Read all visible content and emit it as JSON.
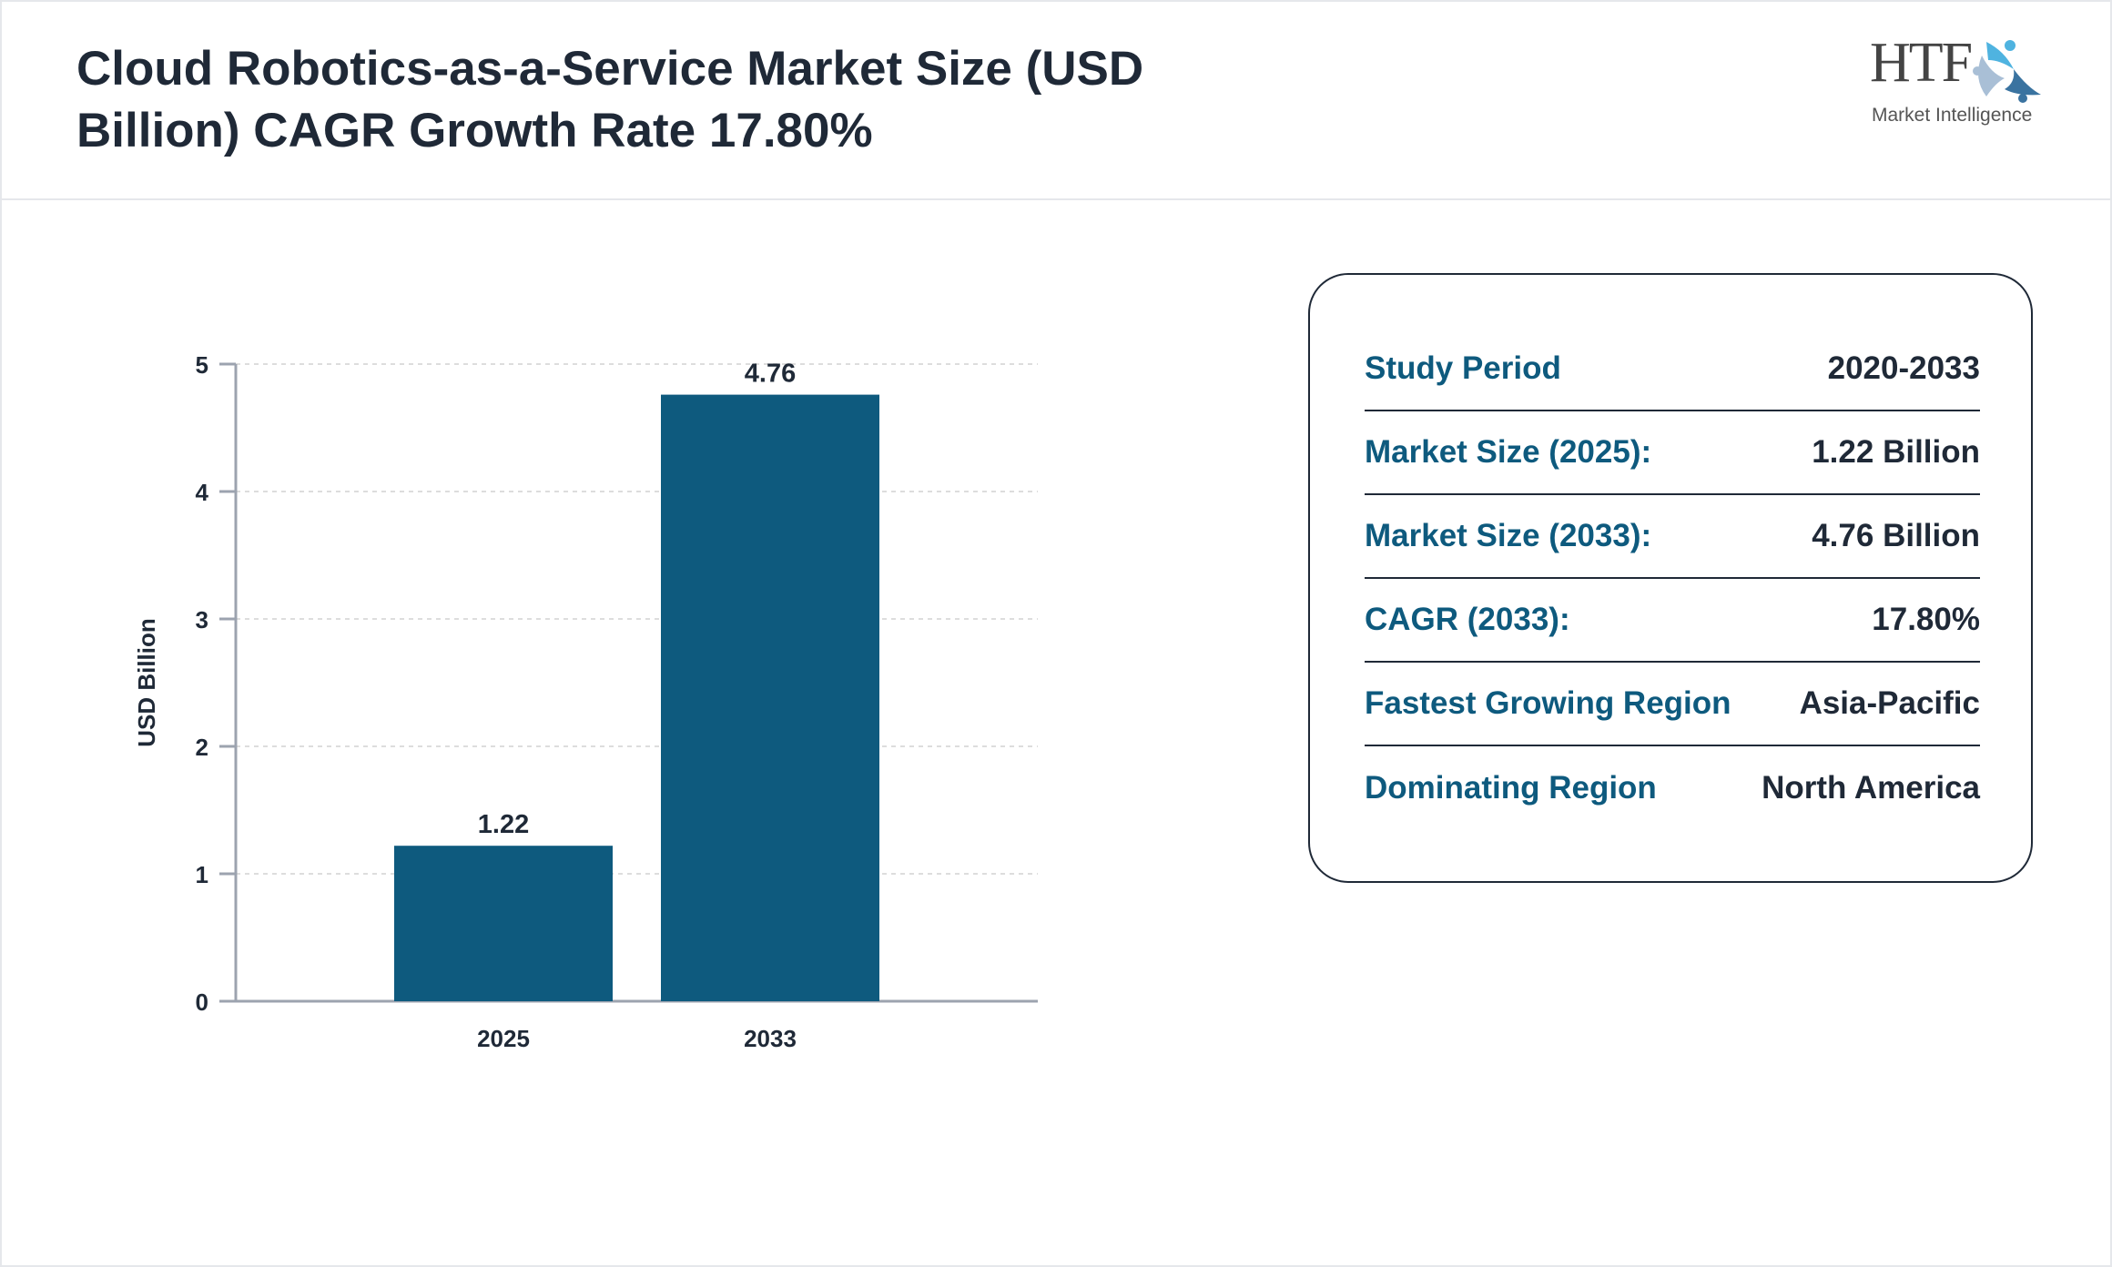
{
  "header": {
    "title": "Cloud Robotics-as-a-Service Market Size (USD Billion) CAGR Growth Rate 17.80%"
  },
  "logo": {
    "text_main": "HTF",
    "text_sub": "Market Intelligence"
  },
  "chart_data": {
    "type": "bar",
    "categories": [
      "2025",
      "2033"
    ],
    "values": [
      1.22,
      4.76
    ],
    "data_labels": [
      "1.22",
      "4.76"
    ],
    "ylabel": "USD Billion",
    "xlabel": "",
    "ylim": [
      0,
      5
    ],
    "yticks": [
      "0",
      "1",
      "2",
      "3",
      "4",
      "5"
    ],
    "grid": true,
    "bar_color": "#0e5a7e"
  },
  "info": {
    "rows": [
      {
        "label": "Study Period",
        "value": "2020-2033"
      },
      {
        "label": "Market Size (2025):",
        "value": "1.22 Billion"
      },
      {
        "label": "Market Size (2033):",
        "value": "4.76 Billion"
      },
      {
        "label": "CAGR (2033):",
        "value": "17.80%"
      },
      {
        "label": "Fastest Growing Region",
        "value": "Asia-Pacific"
      },
      {
        "label": "Dominating Region",
        "value": "North America"
      }
    ]
  }
}
